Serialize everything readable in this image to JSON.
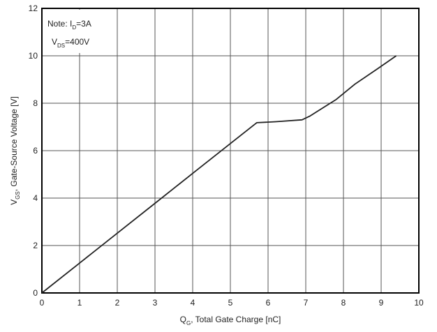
{
  "chart_data": {
    "type": "line",
    "title": "",
    "xlabel": {
      "main": "Q",
      "sub": "G",
      "rest": ", Total Gate Charge [nC]"
    },
    "ylabel": {
      "main": "V",
      "sub": "GS",
      "rest": ", Gate-Source Voltage [V]"
    },
    "xlim": [
      0,
      10
    ],
    "ylim": [
      0,
      12
    ],
    "x_ticks": [
      0,
      1,
      2,
      3,
      4,
      5,
      6,
      7,
      8,
      9,
      10
    ],
    "y_ticks": [
      0,
      2,
      4,
      6,
      8,
      10,
      12
    ],
    "grid": true,
    "annotations": [
      {
        "prefix": "Note: I",
        "sub": "D",
        "suffix": "=3A"
      },
      {
        "prefix": "V",
        "sub": "DS",
        "suffix": "=400V"
      }
    ],
    "series": [
      {
        "color": "#222222",
        "x": [
          0,
          1,
          2,
          3,
          4,
          5,
          5.7,
          6.2,
          6.9,
          7.1,
          7.4,
          7.8,
          8.3,
          8.9,
          9.4
        ],
        "y": [
          0,
          1.26,
          2.52,
          3.78,
          5.04,
          6.3,
          7.18,
          7.22,
          7.3,
          7.45,
          7.75,
          8.15,
          8.8,
          9.45,
          10.0
        ]
      }
    ]
  }
}
